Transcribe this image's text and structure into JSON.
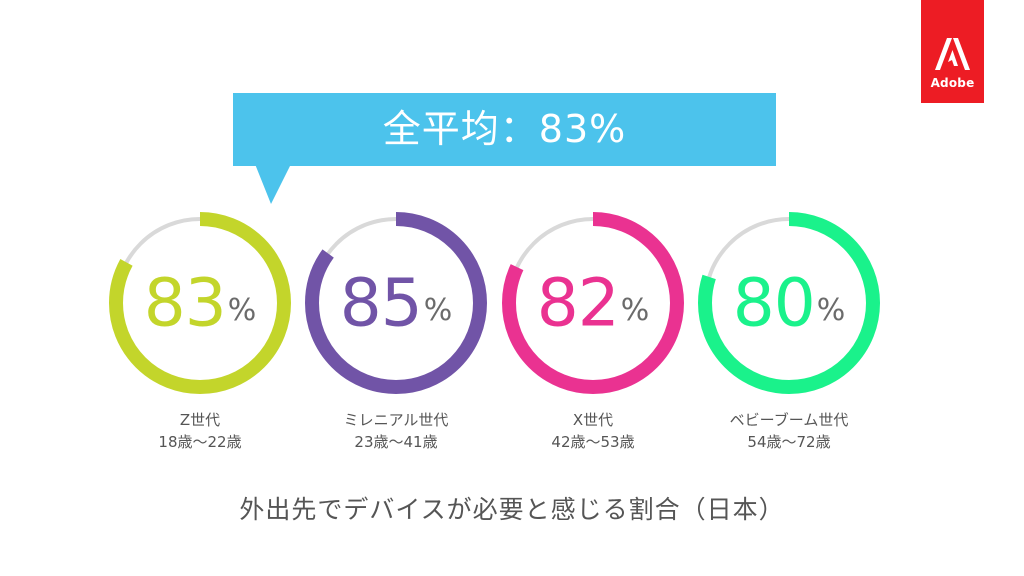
{
  "brand": {
    "logo_text": "Adobe",
    "logo_color": "#ed1c24",
    "logo_icon": "adobe-a-icon"
  },
  "callout": {
    "text": "全平均：83%",
    "color": "#4cc3ec"
  },
  "track_color": "#d9d9d9",
  "chart_data": {
    "type": "donut",
    "title": "",
    "unit": "%",
    "max": 100,
    "series": [
      {
        "name": "Z世代",
        "sub": "18歳〜22歳",
        "value": 83,
        "value_label": "83",
        "color": "#c3d52b"
      },
      {
        "name": "ミレニアル世代",
        "sub": "23歳〜41歳",
        "value": 85,
        "value_label": "85",
        "color": "#7154a7"
      },
      {
        "name": "X世代",
        "sub": "42歳〜53歳",
        "value": 82,
        "value_label": "82",
        "color": "#ea3291"
      },
      {
        "name": "ベビーブーム世代",
        "sub": "54歳〜72歳",
        "value": 80,
        "value_label": "80",
        "color": "#1af28b"
      }
    ],
    "caption": "外出先でデバイスが必要と感じる割合（日本）"
  }
}
